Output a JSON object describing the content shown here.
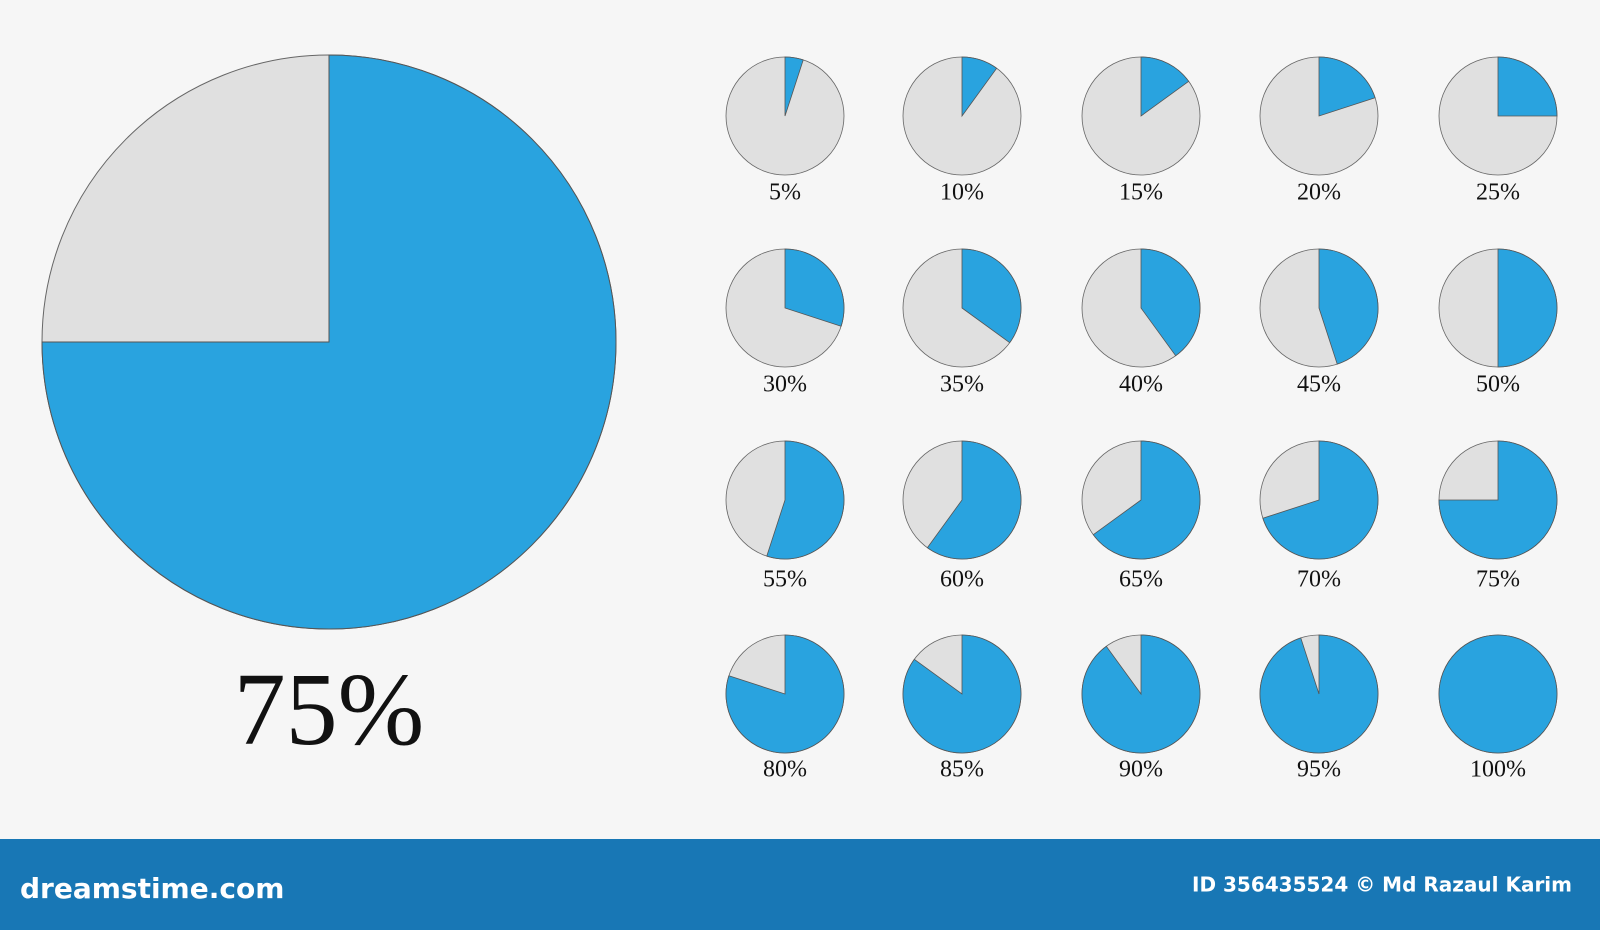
{
  "chart_data": [
    {
      "type": "pie",
      "values": [
        75
      ],
      "value_labels": [
        "75%"
      ],
      "color": "#29a3df"
    },
    {
      "type": "pie",
      "values": [
        5
      ],
      "value_labels": [
        "5%"
      ],
      "color": "#29a3df"
    },
    {
      "type": "pie",
      "values": [
        10
      ],
      "value_labels": [
        "10%"
      ],
      "color": "#29a3df"
    },
    {
      "type": "pie",
      "values": [
        15
      ],
      "value_labels": [
        "15%"
      ],
      "color": "#29a3df"
    },
    {
      "type": "pie",
      "values": [
        20
      ],
      "value_labels": [
        "20%"
      ],
      "color": "#29a3df"
    },
    {
      "type": "pie",
      "values": [
        25
      ],
      "value_labels": [
        "25%"
      ],
      "color": "#29a3df"
    },
    {
      "type": "pie",
      "values": [
        30
      ],
      "value_labels": [
        "30%"
      ],
      "color": "#29a3df"
    },
    {
      "type": "pie",
      "values": [
        35
      ],
      "value_labels": [
        "35%"
      ],
      "color": "#29a3df"
    },
    {
      "type": "pie",
      "values": [
        40
      ],
      "value_labels": [
        "40%"
      ],
      "color": "#29a3df"
    },
    {
      "type": "pie",
      "values": [
        45
      ],
      "value_labels": [
        "45%"
      ],
      "color": "#29a3df"
    },
    {
      "type": "pie",
      "values": [
        50
      ],
      "value_labels": [
        "50%"
      ],
      "color": "#29a3df"
    },
    {
      "type": "pie",
      "values": [
        55
      ],
      "value_labels": [
        "55%"
      ],
      "color": "#29a3df"
    },
    {
      "type": "pie",
      "values": [
        60
      ],
      "value_labels": [
        "60%"
      ],
      "color": "#29a3df"
    },
    {
      "type": "pie",
      "values": [
        65
      ],
      "value_labels": [
        "65%"
      ],
      "color": "#29a3df"
    },
    {
      "type": "pie",
      "values": [
        70
      ],
      "value_labels": [
        "70%"
      ],
      "color": "#29a3df"
    },
    {
      "type": "pie",
      "values": [
        75
      ],
      "value_labels": [
        "75%"
      ],
      "color": "#29a3df"
    },
    {
      "type": "pie",
      "values": [
        80
      ],
      "value_labels": [
        "80%"
      ],
      "color": "#29a3df"
    },
    {
      "type": "pie",
      "values": [
        85
      ],
      "value_labels": [
        "85%"
      ],
      "color": "#29a3df"
    },
    {
      "type": "pie",
      "values": [
        90
      ],
      "value_labels": [
        "90%"
      ],
      "color": "#29a3df"
    },
    {
      "type": "pie",
      "values": [
        95
      ],
      "value_labels": [
        "95%"
      ],
      "color": "#29a3df"
    },
    {
      "type": "pie",
      "values": [
        100
      ],
      "value_labels": [
        "100%"
      ],
      "color": "#29a3df"
    }
  ],
  "footer": {
    "logo": "dreamstime.com",
    "credit": "ID 356435524 © Md Razaul Karim"
  }
}
